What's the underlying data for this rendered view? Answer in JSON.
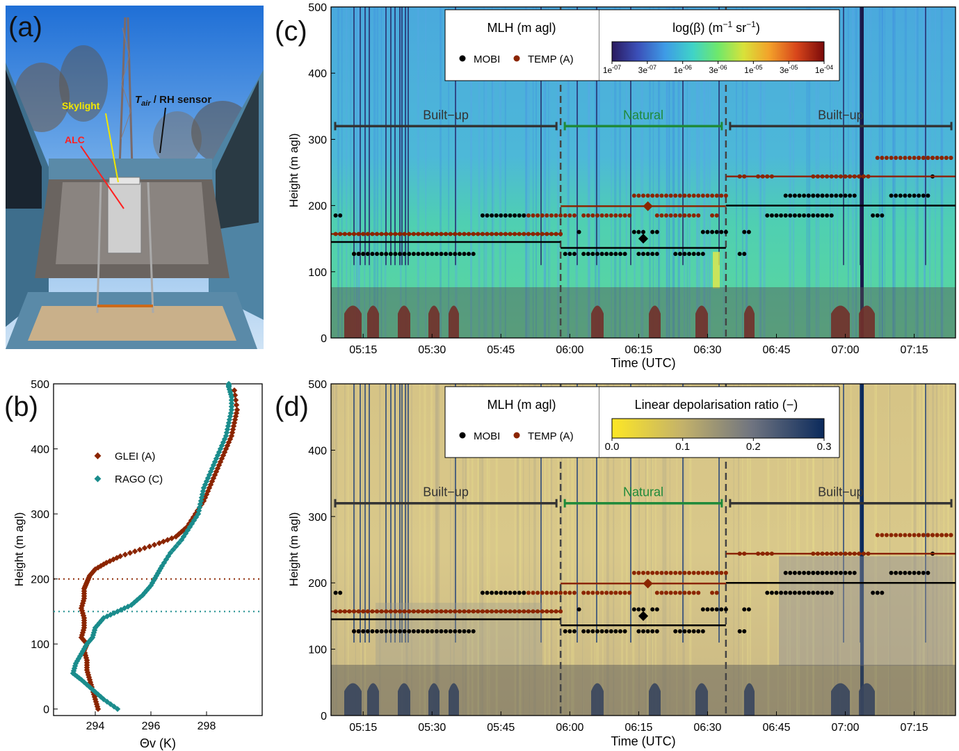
{
  "panels": {
    "a": {
      "label": "(a)",
      "photo_labels": {
        "skylight": "Skylight",
        "alc": "ALC",
        "tair_main": "T",
        "tair_sub": "air",
        "tair_rest": " / RH sensor"
      }
    },
    "b": {
      "label": "(b)"
    },
    "c": {
      "label": "(c)"
    },
    "d": {
      "label": "(d)"
    }
  },
  "colors": {
    "mobi": "#000000",
    "temp": "#8b2500",
    "glei": "#8b2500",
    "rago": "#1a8c8c",
    "builtup": "#333333",
    "natural": "#1f8a3a"
  },
  "chart_data": [
    {
      "id": "b",
      "type": "scatter",
      "xlabel": "Θv (K)",
      "ylabel": "Height (m agl)",
      "xlim": [
        292.5,
        300
      ],
      "ylim": [
        -10,
        500
      ],
      "xticks": [
        294,
        296,
        298
      ],
      "yticks": [
        0,
        100,
        200,
        300,
        400,
        500
      ],
      "reference_lines": [
        {
          "series": "GLEI (A)",
          "height": 200
        },
        {
          "series": "RAGO (C)",
          "height": 150
        }
      ],
      "series": [
        {
          "name": "GLEI (A)",
          "color": "#8b2500",
          "x": [
            294.1,
            294.0,
            293.9,
            293.8,
            293.7,
            293.7,
            293.6,
            293.7,
            293.5,
            293.6,
            293.6,
            293.5,
            293.6,
            293.6,
            293.7,
            293.8,
            294.0,
            294.4,
            294.9,
            295.6,
            296.3,
            296.9,
            297.3,
            297.6,
            297.9,
            298.1,
            298.3,
            298.5,
            298.7,
            298.9,
            299.0,
            299.1,
            299.0
          ],
          "y": [
            0,
            15,
            30,
            45,
            60,
            75,
            90,
            100,
            110,
            125,
            140,
            155,
            170,
            185,
            195,
            205,
            215,
            225,
            235,
            245,
            255,
            265,
            280,
            300,
            320,
            340,
            360,
            380,
            400,
            420,
            440,
            460,
            490
          ]
        },
        {
          "name": "RAGO (C)",
          "color": "#1a8c8c",
          "x": [
            294.8,
            294.3,
            293.9,
            293.5,
            293.2,
            293.3,
            293.5,
            293.7,
            293.9,
            294.0,
            294.3,
            294.8,
            295.3,
            295.7,
            296.0,
            296.2,
            296.4,
            296.7,
            297.1,
            297.4,
            297.7,
            297.8,
            297.9,
            298.1,
            298.3,
            298.5,
            298.7,
            298.8,
            298.9,
            298.9,
            298.8,
            298.8
          ],
          "y": [
            0,
            15,
            30,
            45,
            55,
            70,
            85,
            100,
            110,
            125,
            140,
            150,
            160,
            175,
            190,
            205,
            220,
            240,
            260,
            280,
            300,
            320,
            340,
            360,
            380,
            400,
            420,
            440,
            460,
            480,
            495,
            500
          ]
        }
      ]
    },
    {
      "id": "c",
      "type": "heatmap",
      "xlabel": "Time (UTC)",
      "ylabel": "Height (m agl)",
      "xlim": [
        "05:08",
        "07:24"
      ],
      "ylim": [
        0,
        500
      ],
      "xticks": [
        "05:15",
        "05:30",
        "05:45",
        "06:00",
        "06:15",
        "06:30",
        "06:45",
        "07:00",
        "07:15"
      ],
      "yticks": [
        0,
        100,
        200,
        300,
        400,
        500
      ],
      "legend_title": "MLH (m agl)",
      "legend_entries": [
        "MOBI",
        "TEMP (A)"
      ],
      "colorbar": {
        "label_main": "log(β) (m",
        "label_exp1": "−1",
        "label_mid": " sr",
        "label_exp2": "−1",
        "label_end": ")",
        "ticks": [
          {
            "base": "1e",
            "exp": "-07"
          },
          {
            "base": "3e",
            "exp": "-07"
          },
          {
            "base": "1e",
            "exp": "-06"
          },
          {
            "base": "3e",
            "exp": "-06"
          },
          {
            "base": "1e",
            "exp": "-05"
          },
          {
            "base": "3e",
            "exp": "-05"
          },
          {
            "base": "1e",
            "exp": "-04"
          }
        ]
      },
      "overlap_region_m": [
        0,
        75
      ]
    },
    {
      "id": "d",
      "type": "heatmap",
      "xlabel": "Time (UTC)",
      "ylabel": "Height (m agl)",
      "xlim": [
        "05:08",
        "07:24"
      ],
      "ylim": [
        0,
        500
      ],
      "xticks": [
        "05:15",
        "05:30",
        "05:45",
        "06:00",
        "06:15",
        "06:30",
        "06:45",
        "07:00",
        "07:15"
      ],
      "yticks": [
        0,
        100,
        200,
        300,
        400,
        500
      ],
      "legend_title": "MLH (m agl)",
      "legend_entries": [
        "MOBI",
        "TEMP (A)"
      ],
      "colorbar": {
        "label": "Linear depolarisation ratio (−)",
        "ticks": [
          "0.0",
          "0.1",
          "0.2",
          "0.3"
        ]
      },
      "overlap_region_m": [
        0,
        75
      ]
    }
  ],
  "segments": [
    {
      "label": "Built−up",
      "start": "05:08",
      "end": "05:58",
      "kind": "builtup"
    },
    {
      "label": "Natural",
      "start": "05:58",
      "end": "06:34",
      "kind": "natural"
    },
    {
      "label": "Built−up",
      "start": "06:34",
      "end": "07:24",
      "kind": "builtup"
    }
  ],
  "segment_height_m": 320,
  "segment_boundaries": [
    "05:58",
    "06:34"
  ],
  "mlh_mean": {
    "MOBI": [
      {
        "start": "05:08",
        "end": "05:58",
        "value": 145
      },
      {
        "start": "05:58",
        "end": "06:34",
        "value": 136
      },
      {
        "start": "06:34",
        "end": "07:24",
        "value": 200
      }
    ],
    "TEMP (A)": [
      {
        "start": "05:08",
        "end": "05:58",
        "value": 157
      },
      {
        "start": "05:58",
        "end": "06:34",
        "value": 199
      },
      {
        "start": "06:34",
        "end": "07:24",
        "value": 244
      }
    ]
  },
  "mlh_markers": [
    {
      "series": "MOBI",
      "time": "06:16",
      "value": 150
    },
    {
      "series": "TEMP (A)",
      "time": "06:17",
      "value": 199
    }
  ],
  "mlh_points": {
    "MOBI": [
      {
        "start": "05:09",
        "end": "05:10",
        "value": 185
      },
      {
        "start": "05:13",
        "end": "05:39",
        "value": 127
      },
      {
        "start": "05:41",
        "end": "05:50",
        "value": 185
      },
      {
        "start": "05:59",
        "end": "06:01",
        "value": 127
      },
      {
        "start": "06:03",
        "end": "06:12",
        "value": 127
      },
      {
        "start": "06:02",
        "end": "06:02",
        "value": 160
      },
      {
        "start": "06:14",
        "end": "06:16",
        "value": 160
      },
      {
        "start": "06:18",
        "end": "06:19",
        "value": 160
      },
      {
        "start": "06:15",
        "end": "06:19",
        "value": 127
      },
      {
        "start": "06:23",
        "end": "06:29",
        "value": 127
      },
      {
        "start": "06:29",
        "end": "06:34",
        "value": 160
      },
      {
        "start": "06:38",
        "end": "06:39",
        "value": 160
      },
      {
        "start": "06:37",
        "end": "06:38",
        "value": 127
      },
      {
        "start": "06:43",
        "end": "06:57",
        "value": 185
      },
      {
        "start": "06:47",
        "end": "06:55",
        "value": 215
      },
      {
        "start": "06:52",
        "end": "07:02",
        "value": 215
      },
      {
        "start": "07:10",
        "end": "07:18",
        "value": 215
      },
      {
        "start": "07:06",
        "end": "07:08",
        "value": 185
      },
      {
        "start": "07:19",
        "end": "07:19",
        "value": 244
      }
    ],
    "TEMP (A)": [
      {
        "start": "05:09",
        "end": "05:58",
        "value": 157
      },
      {
        "start": "05:13",
        "end": "05:15",
        "value": 127
      },
      {
        "start": "05:50",
        "end": "05:58",
        "value": 185
      },
      {
        "start": "05:59",
        "end": "06:01",
        "value": 185
      },
      {
        "start": "06:03",
        "end": "06:13",
        "value": 185
      },
      {
        "start": "06:14",
        "end": "06:29",
        "value": 215
      },
      {
        "start": "06:19",
        "end": "06:28",
        "value": 185
      },
      {
        "start": "06:30",
        "end": "06:34",
        "value": 215
      },
      {
        "start": "06:31",
        "end": "06:32",
        "value": 185
      },
      {
        "start": "06:37",
        "end": "06:38",
        "value": 244
      },
      {
        "start": "06:41",
        "end": "06:44",
        "value": 244
      },
      {
        "start": "06:53",
        "end": "07:05",
        "value": 244
      },
      {
        "start": "07:07",
        "end": "07:23",
        "value": 272
      },
      {
        "start": "07:16",
        "end": "07:23",
        "value": 272
      }
    ]
  }
}
